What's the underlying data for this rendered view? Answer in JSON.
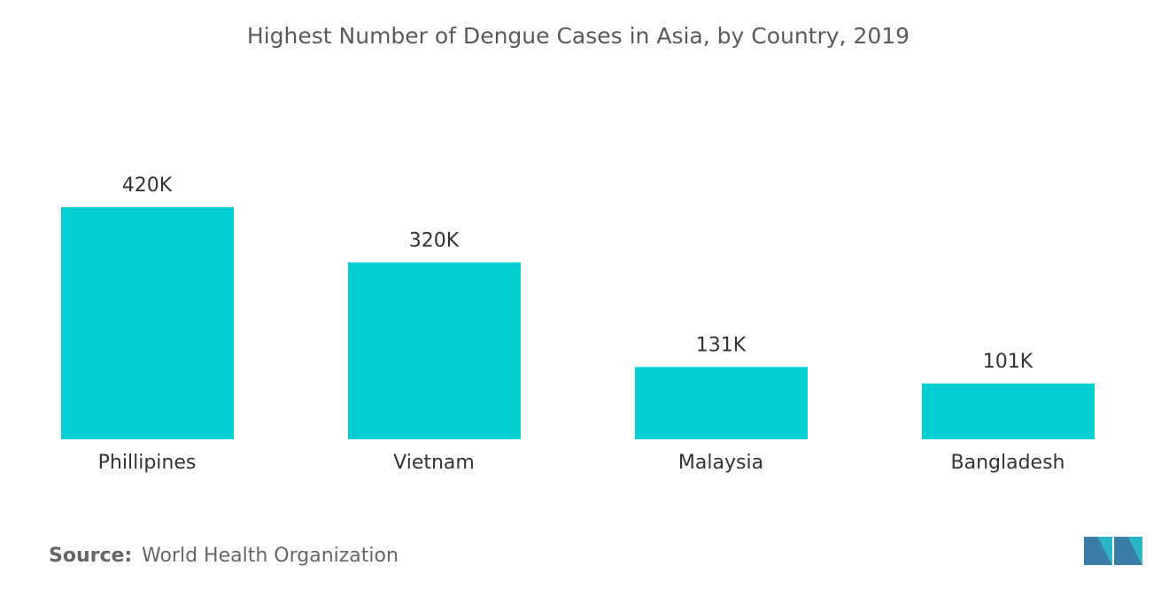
{
  "chart_data": {
    "type": "bar",
    "title": "Highest Number of Dengue Cases in Asia, by Country, 2019",
    "categories": [
      "Phillipines",
      "Vietnam",
      "Malaysia",
      "Bangladesh"
    ],
    "values": [
      420,
      320,
      131,
      101
    ],
    "value_labels": [
      "420K",
      "320K",
      "131K",
      "101K"
    ],
    "color": "#00ced1",
    "source_label": "Source:",
    "source": "World Health Organization"
  }
}
